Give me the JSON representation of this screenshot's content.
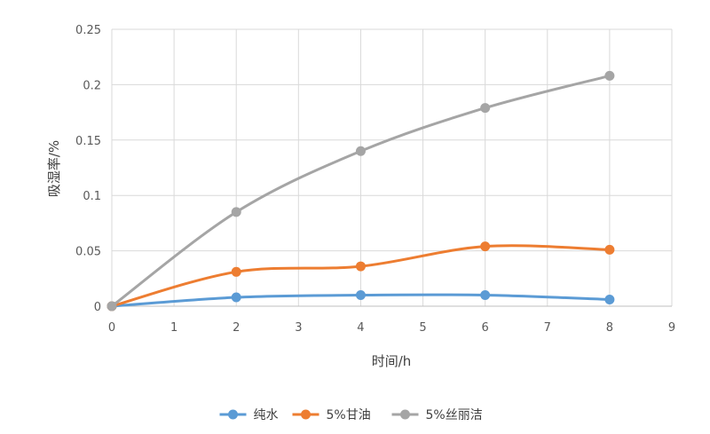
{
  "chart_data": {
    "type": "line",
    "title": "",
    "xlabel": "时间/h",
    "ylabel": "吸湿率/%",
    "xlim": [
      0,
      9
    ],
    "ylim": [
      0,
      0.25
    ],
    "x_ticks": [
      "0",
      "1",
      "2",
      "3",
      "4",
      "5",
      "6",
      "7",
      "8",
      "9"
    ],
    "y_ticks": [
      "0",
      "0.05",
      "0.1",
      "0.15",
      "0.2",
      "0.25"
    ],
    "grid": true,
    "legend_position": "bottom",
    "smooth": true,
    "series": [
      {
        "name": "纯水",
        "color": "#5B9BD5",
        "points": [
          [
            0,
            0
          ],
          [
            2,
            0.008
          ],
          [
            4,
            0.01
          ],
          [
            6,
            0.01
          ],
          [
            8,
            0.006
          ]
        ]
      },
      {
        "name": "5%甘油",
        "color": "#ED7D31",
        "points": [
          [
            0,
            0
          ],
          [
            2,
            0.031
          ],
          [
            4,
            0.036
          ],
          [
            6,
            0.054
          ],
          [
            8,
            0.051
          ]
        ]
      },
      {
        "name": "5%丝丽洁",
        "color": "#A5A5A5",
        "points": [
          [
            0,
            0
          ],
          [
            2,
            0.085
          ],
          [
            4,
            0.14
          ],
          [
            6,
            0.179
          ],
          [
            8,
            0.208
          ]
        ]
      }
    ]
  }
}
